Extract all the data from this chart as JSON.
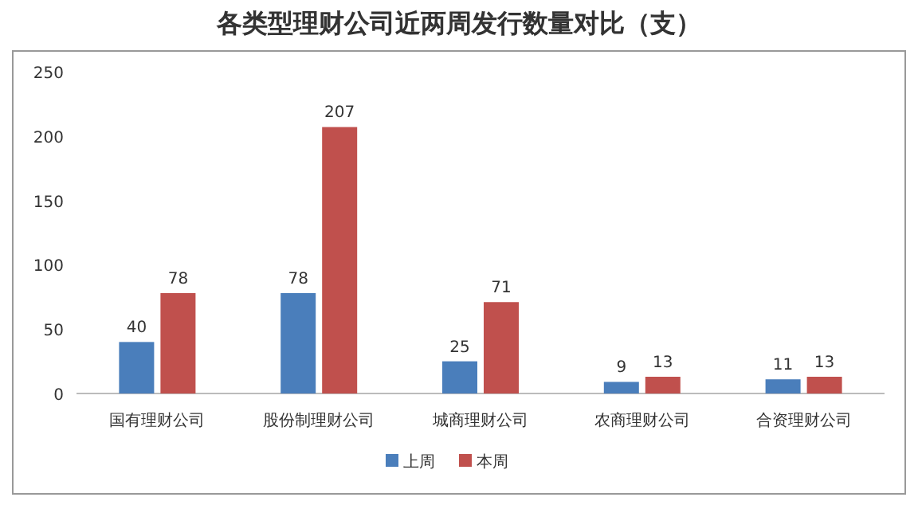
{
  "chart_data": {
    "type": "bar",
    "title": "各类型理财公司近两周发行数量对比（支）",
    "categories": [
      "国有理财公司",
      "股份制理财公司",
      "城商理财公司",
      "农商理财公司",
      "合资理财公司"
    ],
    "series": [
      {
        "name": "上周",
        "color": "#4a7ebb",
        "values": [
          40,
          78,
          25,
          9,
          11
        ]
      },
      {
        "name": "本周",
        "color": "#c0504d",
        "values": [
          78,
          207,
          71,
          13,
          13
        ]
      }
    ],
    "ylim": [
      0,
      250
    ],
    "yticks": [
      0,
      50,
      100,
      150,
      200,
      250
    ],
    "data_labels": true,
    "legend": "bottom",
    "grid": false
  }
}
